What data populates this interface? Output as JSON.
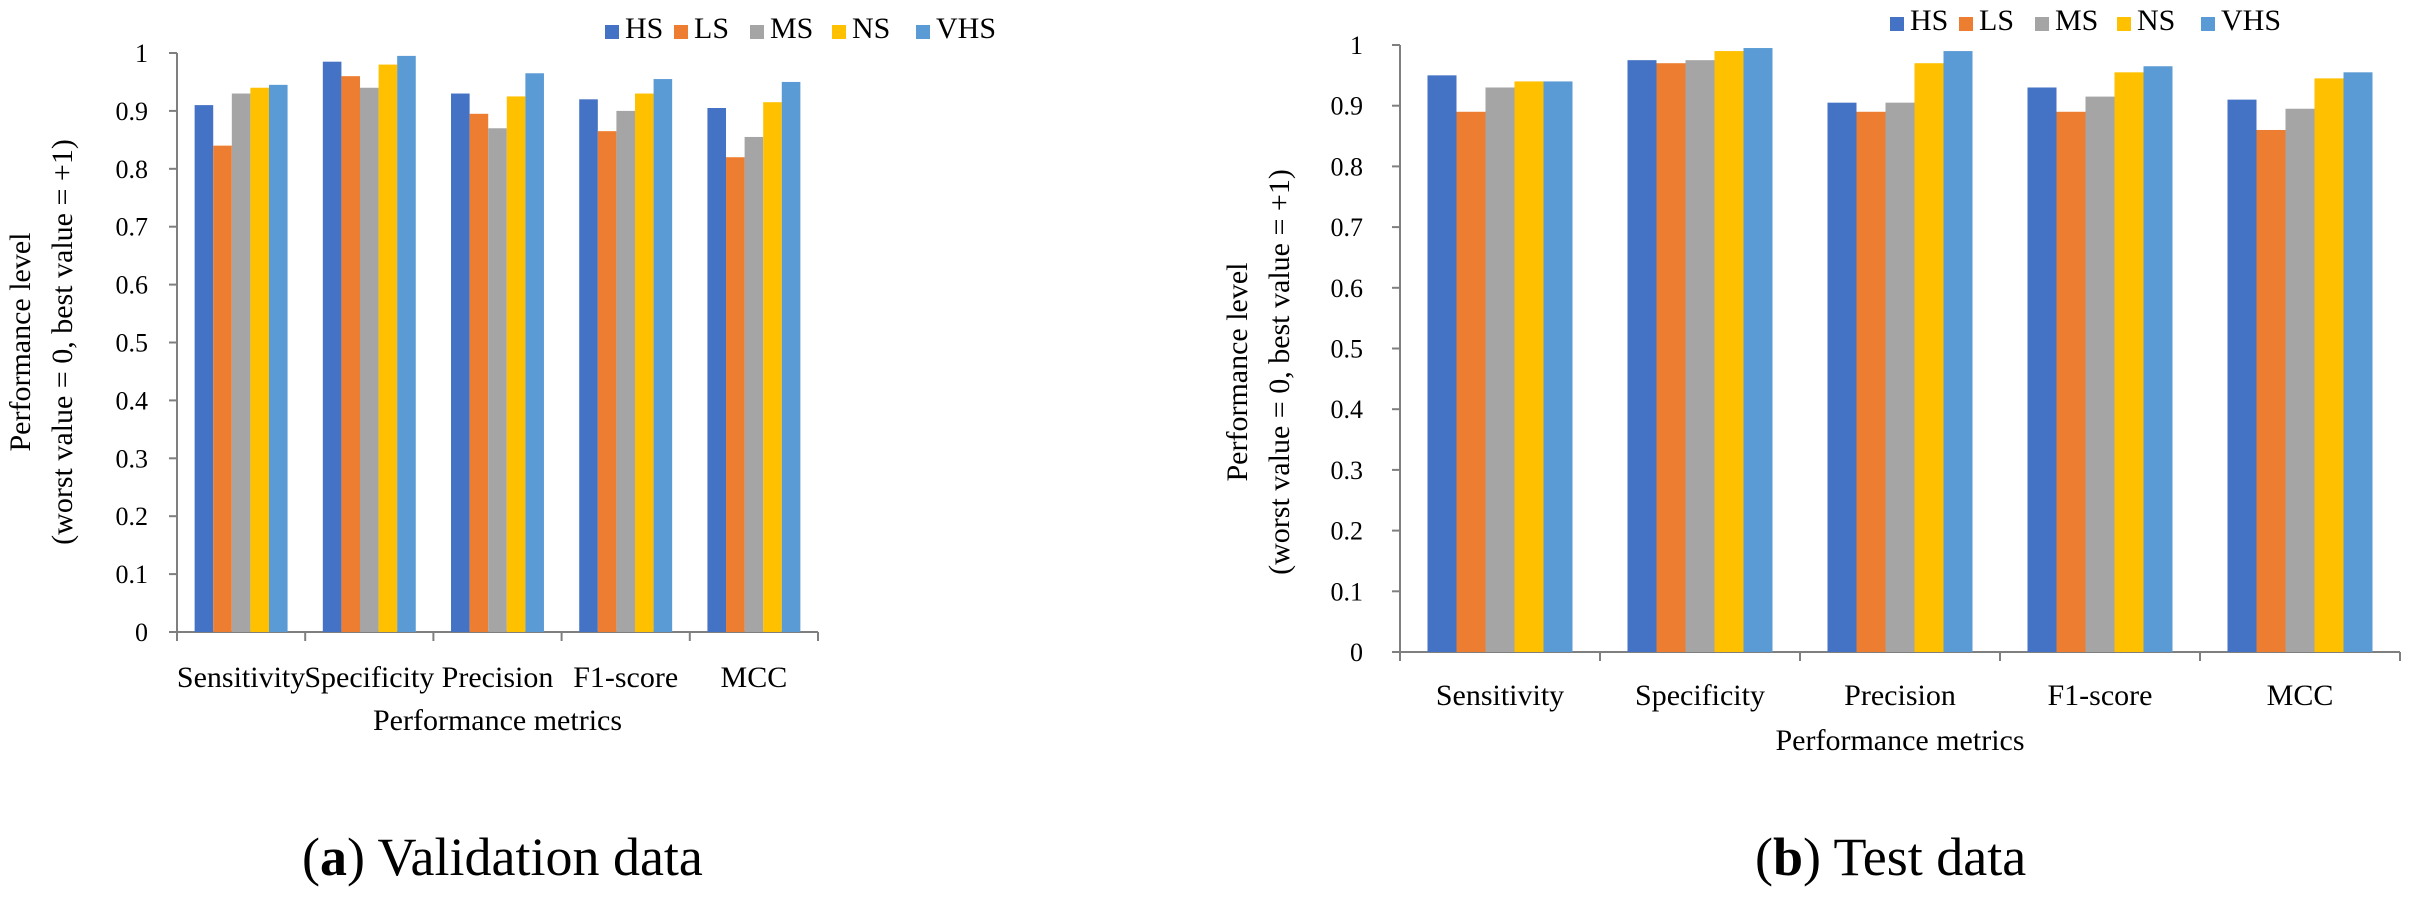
{
  "colors": {
    "HS": "#4472C4",
    "LS": "#ED7D31",
    "MS": "#A5A5A5",
    "NS": "#FFC000",
    "VHS": "#5B9BD5",
    "axis": "#7f7f7f"
  },
  "chart_data": [
    {
      "type": "bar",
      "caption": {
        "label": "a",
        "text": "Validation data"
      },
      "xlabel": "Performance metrics",
      "ylabel": [
        "Performance level",
        "(worst value = 0, best value = +1)"
      ],
      "ylim": [
        0,
        1
      ],
      "yticks": [
        "0",
        "0.1",
        "0.2",
        "0.3",
        "0.4",
        "0.5",
        "0.6",
        "0.7",
        "0.8",
        "0.9",
        "1"
      ],
      "grid": false,
      "legend": "top-right",
      "categories": [
        "Sensitivity",
        "Specificity",
        "Precision",
        "F1-score",
        "MCC"
      ],
      "series": [
        {
          "name": "HS",
          "values": [
            0.91,
            0.985,
            0.93,
            0.92,
            0.905
          ]
        },
        {
          "name": "LS",
          "values": [
            0.84,
            0.96,
            0.895,
            0.865,
            0.82
          ]
        },
        {
          "name": "MS",
          "values": [
            0.93,
            0.94,
            0.87,
            0.9,
            0.855
          ]
        },
        {
          "name": "NS",
          "values": [
            0.94,
            0.98,
            0.925,
            0.93,
            0.915
          ]
        },
        {
          "name": "VHS",
          "values": [
            0.945,
            0.995,
            0.965,
            0.955,
            0.95
          ]
        }
      ]
    },
    {
      "type": "bar",
      "caption": {
        "label": "b",
        "text": "Test data"
      },
      "xlabel": "Performance metrics",
      "ylabel": [
        "Performance level",
        "(worst value = 0, best value = +1)"
      ],
      "ylim": [
        0,
        1
      ],
      "yticks": [
        "0",
        "0.1",
        "0.2",
        "0.3",
        "0.4",
        "0.5",
        "0.6",
        "0.7",
        "0.8",
        "0.9",
        "1"
      ],
      "grid": false,
      "legend": "top-right",
      "categories": [
        "Sensitivity",
        "Specificity",
        "Precision",
        "F1-score",
        "MCC"
      ],
      "series": [
        {
          "name": "HS",
          "values": [
            0.95,
            0.975,
            0.905,
            0.93,
            0.91
          ]
        },
        {
          "name": "LS",
          "values": [
            0.89,
            0.97,
            0.89,
            0.89,
            0.86
          ]
        },
        {
          "name": "MS",
          "values": [
            0.93,
            0.975,
            0.905,
            0.915,
            0.895
          ]
        },
        {
          "name": "NS",
          "values": [
            0.94,
            0.99,
            0.97,
            0.955,
            0.945
          ]
        },
        {
          "name": "VHS",
          "values": [
            0.94,
            0.995,
            0.99,
            0.965,
            0.955
          ]
        }
      ]
    }
  ]
}
